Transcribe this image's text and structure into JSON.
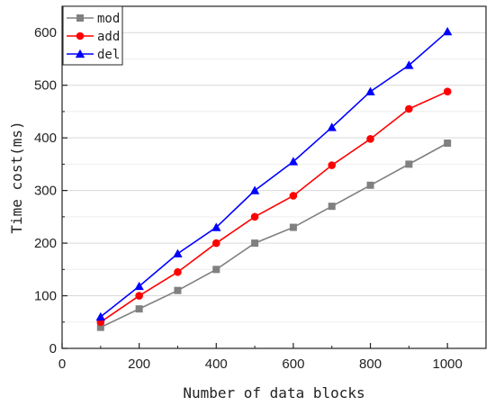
{
  "chart_data": {
    "type": "line",
    "xlabel": "Number of data blocks",
    "ylabel": "Time cost(ms)",
    "xlim": [
      0,
      1100
    ],
    "ylim": [
      0,
      650
    ],
    "x_ticks": [
      0,
      200,
      400,
      600,
      800,
      1000
    ],
    "y_ticks": [
      0,
      100,
      200,
      300,
      400,
      500,
      600
    ],
    "grid": "horizontal",
    "legend_position": "top-left",
    "x": [
      100,
      200,
      300,
      400,
      500,
      600,
      700,
      800,
      900,
      1000
    ],
    "series": [
      {
        "name": "mod",
        "color": "#808080",
        "marker": "square",
        "values": [
          40,
          75,
          110,
          150,
          200,
          230,
          270,
          310,
          350,
          390
        ]
      },
      {
        "name": "add",
        "color": "#ff0000",
        "marker": "circle",
        "values": [
          50,
          100,
          145,
          200,
          250,
          290,
          348,
          398,
          455,
          488
        ]
      },
      {
        "name": "del",
        "color": "#0000ff",
        "marker": "triangle",
        "values": [
          60,
          118,
          180,
          230,
          300,
          355,
          420,
          488,
          538,
          602
        ]
      }
    ]
  }
}
